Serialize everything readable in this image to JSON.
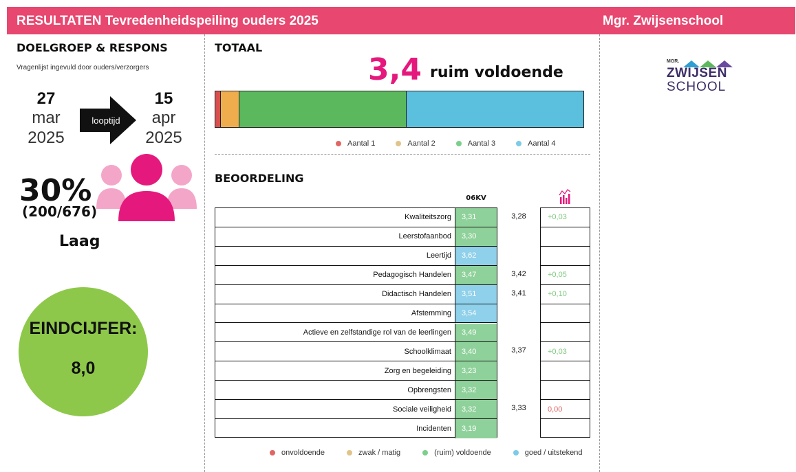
{
  "header": {
    "title": "RESULTATEN Tevredenheidspeiling ouders 2025",
    "school": "Mgr. Zwijsenschool"
  },
  "left": {
    "section_title": "DOELGROEP & RESPONS",
    "subtitle": "Vragenlijst ingevuld door ouders/verzorgers",
    "start": {
      "day": "27",
      "month": "mar",
      "year": "2025"
    },
    "end": {
      "day": "15",
      "month": "apr",
      "year": "2025"
    },
    "arrow_label": "looptijd",
    "response_pct": "30%",
    "response_frac": "(200/676)",
    "response_level": "Laag",
    "eindcijfer_label": "EINDCIJFER:",
    "eindcijfer_value": "8,0"
  },
  "totaal": {
    "section_title": "TOTAAL",
    "score": "3,4",
    "score_label": "ruim voldoende",
    "segments": [
      {
        "name": "Aantal 1",
        "share": 0.015,
        "color": "#d94f4f"
      },
      {
        "name": "Aantal 2",
        "share": 0.05,
        "color": "#f0ad4e"
      },
      {
        "name": "Aantal 3",
        "share": 0.455,
        "color": "#5cb85c"
      },
      {
        "name": "Aantal 4",
        "share": 0.48,
        "color": "#5bc0de"
      }
    ],
    "legend_colors": [
      "#e06666",
      "#e0c48a",
      "#7bcf8a",
      "#7ccbe8"
    ]
  },
  "beoordeling": {
    "section_title": "BEOORDELING",
    "col_header": "06KV",
    "trend_icon": "trend-chart-icon",
    "rows": [
      {
        "label": "Kwaliteitszorg",
        "score": "3,31",
        "cat": "g",
        "prev": "3,28",
        "diff": "+0,03",
        "diff_color": "#7fc97f"
      },
      {
        "label": "Leerstofaanbod",
        "score": "3,30",
        "cat": "g",
        "prev": "",
        "diff": "",
        "diff_color": "#7fc97f"
      },
      {
        "label": "Leertijd",
        "score": "3,62",
        "cat": "b",
        "prev": "",
        "diff": "",
        "diff_color": "#7fc97f"
      },
      {
        "label": "Pedagogisch Handelen",
        "score": "3,47",
        "cat": "g",
        "prev": "3,42",
        "diff": "+0,05",
        "diff_color": "#7fc97f"
      },
      {
        "label": "Didactisch Handelen",
        "score": "3,51",
        "cat": "b",
        "prev": "3,41",
        "diff": "+0,10",
        "diff_color": "#7fc97f"
      },
      {
        "label": "Afstemming",
        "score": "3,54",
        "cat": "b",
        "prev": "",
        "diff": "",
        "diff_color": "#7fc97f"
      },
      {
        "label": "Actieve en zelfstandige rol van de leerlingen",
        "score": "3,49",
        "cat": "g",
        "prev": "",
        "diff": "",
        "diff_color": "#7fc97f"
      },
      {
        "label": "Schoolklimaat",
        "score": "3,40",
        "cat": "g",
        "prev": "3,37",
        "diff": "+0,03",
        "diff_color": "#7fc97f"
      },
      {
        "label": "Zorg en begeleiding",
        "score": "3,23",
        "cat": "g",
        "prev": "",
        "diff": "",
        "diff_color": "#7fc97f"
      },
      {
        "label": "Opbrengsten",
        "score": "3,32",
        "cat": "g",
        "prev": "",
        "diff": "",
        "diff_color": "#7fc97f"
      },
      {
        "label": "Sociale veiligheid",
        "score": "3,32",
        "cat": "g",
        "prev": "3,33",
        "diff": "0,00",
        "diff_color": "#e06666"
      },
      {
        "label": "Incidenten",
        "score": "3,19",
        "cat": "g",
        "prev": "",
        "diff": "",
        "diff_color": "#7fc97f"
      }
    ],
    "cat_colors": {
      "g": "#8fd19a",
      "b": "#8fd0ea"
    },
    "legend": [
      {
        "label": "onvoldoende",
        "color": "#e06666"
      },
      {
        "label": "zwak / matig",
        "color": "#e0c48a"
      },
      {
        "label": "(ruim) voldoende",
        "color": "#7bcf8a"
      },
      {
        "label": "goed / uitstekend",
        "color": "#7ccbe8"
      }
    ]
  },
  "logo": {
    "small": "MGR.",
    "big": "ZWIJSEN",
    "sub": "SCHOOL"
  }
}
